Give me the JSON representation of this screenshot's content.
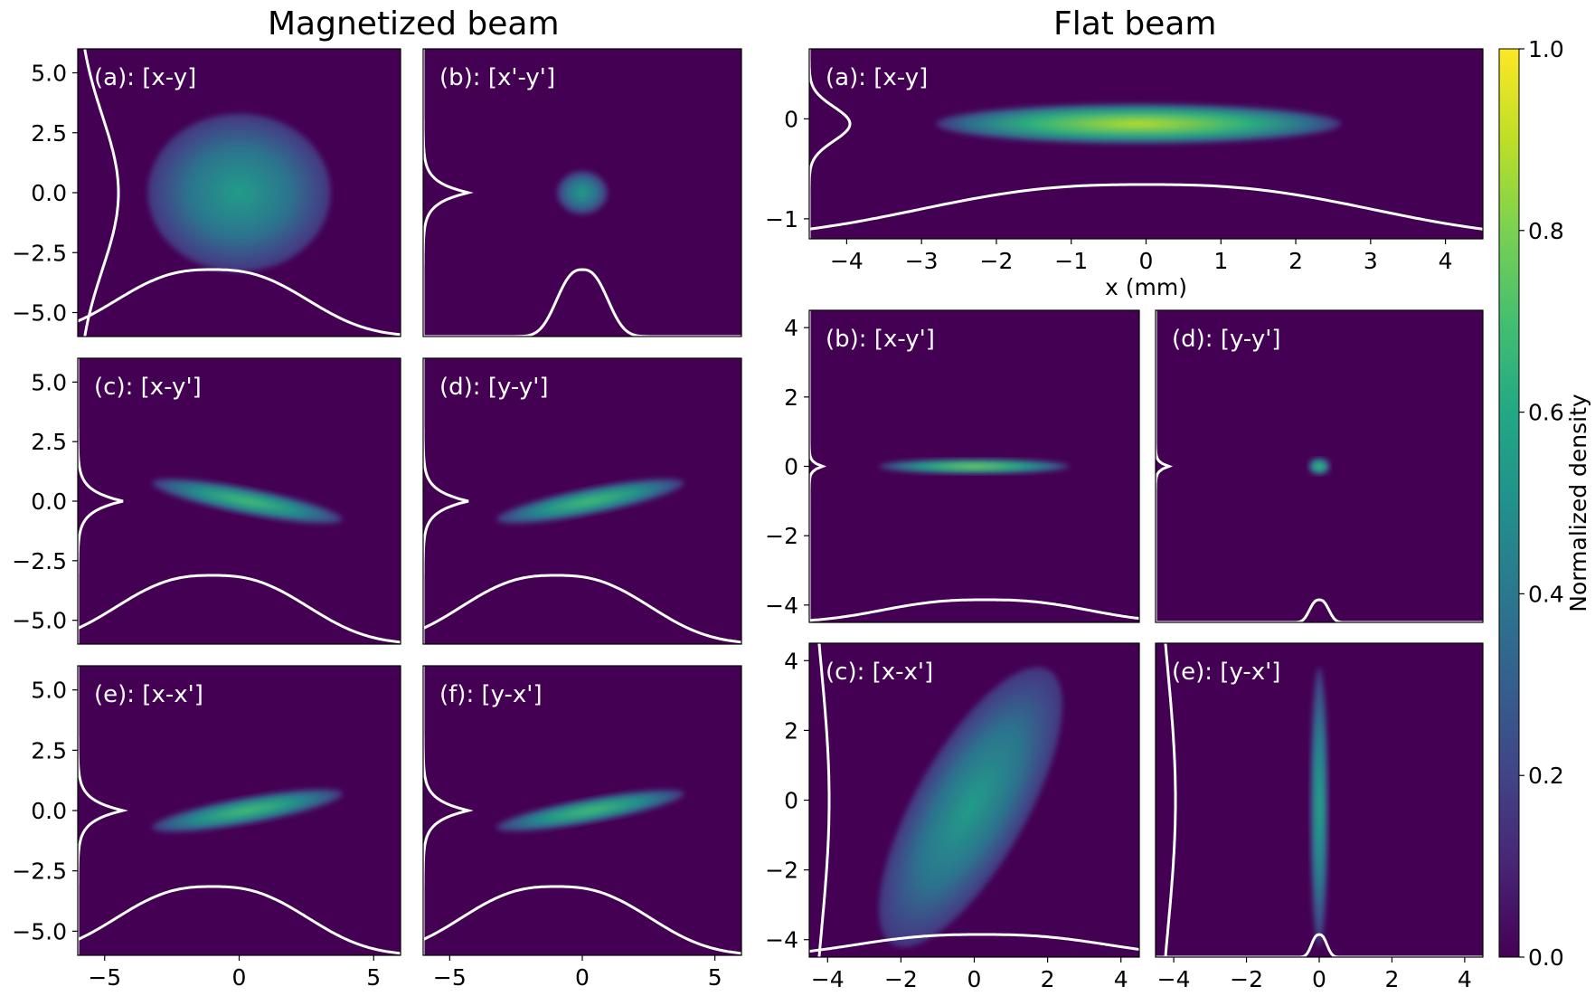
{
  "titles": {
    "left": "Magnetized beam",
    "right": "Flat beam"
  },
  "colorbar": {
    "label": "Normalized density",
    "ticks": [
      "0.0",
      "0.2",
      "0.4",
      "0.6",
      "0.8",
      "1.0"
    ],
    "colormap": "viridis",
    "range": [
      0.0,
      1.0
    ]
  },
  "colors": {
    "background": "#440154",
    "profile_line": "#ffffff"
  },
  "chart_data": [
    {
      "type": "heatmap",
      "group": "Magnetized beam",
      "label": "(a): [x-y]",
      "xlim": [
        -6,
        6
      ],
      "ylim": [
        -6,
        6
      ],
      "xticks": [],
      "yticks": [
        "5.0",
        "2.5",
        "0.0",
        "−2.5",
        "−5.0"
      ],
      "blob": {
        "shape": "disk",
        "cx": 0.0,
        "cy": 0.0,
        "rx": 3.4,
        "ry": 3.3,
        "peak": 0.55
      }
    },
    {
      "type": "heatmap",
      "group": "Magnetized beam",
      "label": "(b): [x'-y']",
      "xlim": [
        -6,
        6
      ],
      "ylim": [
        -6,
        6
      ],
      "xticks": [],
      "yticks": [],
      "blob": {
        "shape": "disk",
        "cx": 0.0,
        "cy": 0.0,
        "rx": 0.95,
        "ry": 0.9,
        "peak": 0.55
      }
    },
    {
      "type": "heatmap",
      "group": "Magnetized beam",
      "label": "(c): [x-y']",
      "xlim": [
        -6,
        6
      ],
      "ylim": [
        -6,
        6
      ],
      "xticks": [],
      "yticks": [
        "5.0",
        "2.5",
        "0.0",
        "−2.5",
        "−5.0"
      ],
      "blob": {
        "shape": "ellipse",
        "cx": 0.3,
        "cy": 0.0,
        "rx": 3.6,
        "ry": 0.55,
        "slope": -0.22,
        "peak": 0.7
      }
    },
    {
      "type": "heatmap",
      "group": "Magnetized beam",
      "label": "(d): [y-y']",
      "xlim": [
        -6,
        6
      ],
      "ylim": [
        -6,
        6
      ],
      "xticks": [],
      "yticks": [],
      "blob": {
        "shape": "ellipse",
        "cx": 0.3,
        "cy": 0.0,
        "rx": 3.6,
        "ry": 0.55,
        "slope": 0.22,
        "peak": 0.7
      }
    },
    {
      "type": "heatmap",
      "group": "Magnetized beam",
      "label": "(e): [x-x']",
      "xlim": [
        -6,
        6
      ],
      "ylim": [
        -6,
        6
      ],
      "xticks": [
        "−5",
        "0",
        "5"
      ],
      "yticks": [
        "5.0",
        "2.5",
        "0.0",
        "−2.5",
        "−5.0"
      ],
      "blob": {
        "shape": "ellipse",
        "cx": 0.3,
        "cy": 0.0,
        "rx": 3.6,
        "ry": 0.55,
        "slope": 0.2,
        "peak": 0.7
      }
    },
    {
      "type": "heatmap",
      "group": "Magnetized beam",
      "label": "(f): [y-x']",
      "xlim": [
        -6,
        6
      ],
      "ylim": [
        -6,
        6
      ],
      "xticks": [
        "−5",
        "0",
        "5"
      ],
      "yticks": [],
      "blob": {
        "shape": "ellipse",
        "cx": 0.3,
        "cy": 0.0,
        "rx": 3.6,
        "ry": 0.5,
        "slope": 0.2,
        "peak": 0.7
      }
    },
    {
      "type": "heatmap",
      "group": "Flat beam",
      "label": "(a): [x-y]",
      "xlim": [
        -4.5,
        4.5
      ],
      "ylim": [
        -1.2,
        0.7
      ],
      "xticks": [
        "−4",
        "−3",
        "−2",
        "−1",
        "0",
        "1",
        "2",
        "3",
        "4"
      ],
      "yticks": [
        "0",
        "−1"
      ],
      "xlabel": "x (mm)",
      "blob": {
        "shape": "ellipse",
        "cx": -0.1,
        "cy": -0.05,
        "rx": 2.7,
        "ry": 0.2,
        "slope": 0.0,
        "peak": 0.9
      }
    },
    {
      "type": "heatmap",
      "group": "Flat beam",
      "label": "(b): [x-y']",
      "xlim": [
        -4.5,
        4.5
      ],
      "ylim": [
        -4.5,
        4.5
      ],
      "xticks": [],
      "yticks": [
        "4",
        "2",
        "0",
        "−2",
        "−4"
      ],
      "blob": {
        "shape": "ellipse",
        "cx": 0.0,
        "cy": 0.0,
        "rx": 2.6,
        "ry": 0.22,
        "slope": 0.0,
        "peak": 0.8
      }
    },
    {
      "type": "heatmap",
      "group": "Flat beam",
      "label": "(d): [y-y']",
      "xlim": [
        -4.5,
        4.5
      ],
      "ylim": [
        -4.5,
        4.5
      ],
      "xticks": [],
      "yticks": [],
      "blob": {
        "shape": "disk",
        "cx": 0.0,
        "cy": 0.0,
        "rx": 0.3,
        "ry": 0.25,
        "peak": 0.7
      }
    },
    {
      "type": "heatmap",
      "group": "Flat beam",
      "label": "(c): [x-x']",
      "xlim": [
        -4.5,
        4.5
      ],
      "ylim": [
        -4.5,
        4.5
      ],
      "xticks": [
        "−4",
        "−2",
        "0",
        "2",
        "4"
      ],
      "yticks": [
        "4",
        "2",
        "0",
        "−2",
        "−4"
      ],
      "blob": {
        "shape": "ellipse",
        "cx": -0.1,
        "cy": -0.2,
        "rx": 4.3,
        "ry": 1.6,
        "slope": 1.85,
        "peak": 0.55
      }
    },
    {
      "type": "heatmap",
      "group": "Flat beam",
      "label": "(e): [y-x']",
      "xlim": [
        -4.5,
        4.5
      ],
      "ylim": [
        -4.5,
        4.5
      ],
      "xticks": [
        "−4",
        "−2",
        "0",
        "2",
        "4"
      ],
      "yticks": [],
      "blob": {
        "shape": "ellipse",
        "cx": 0.0,
        "cy": -0.2,
        "rx": 0.25,
        "ry": 4.0,
        "slope": 0.0,
        "peak": 0.6
      }
    }
  ]
}
